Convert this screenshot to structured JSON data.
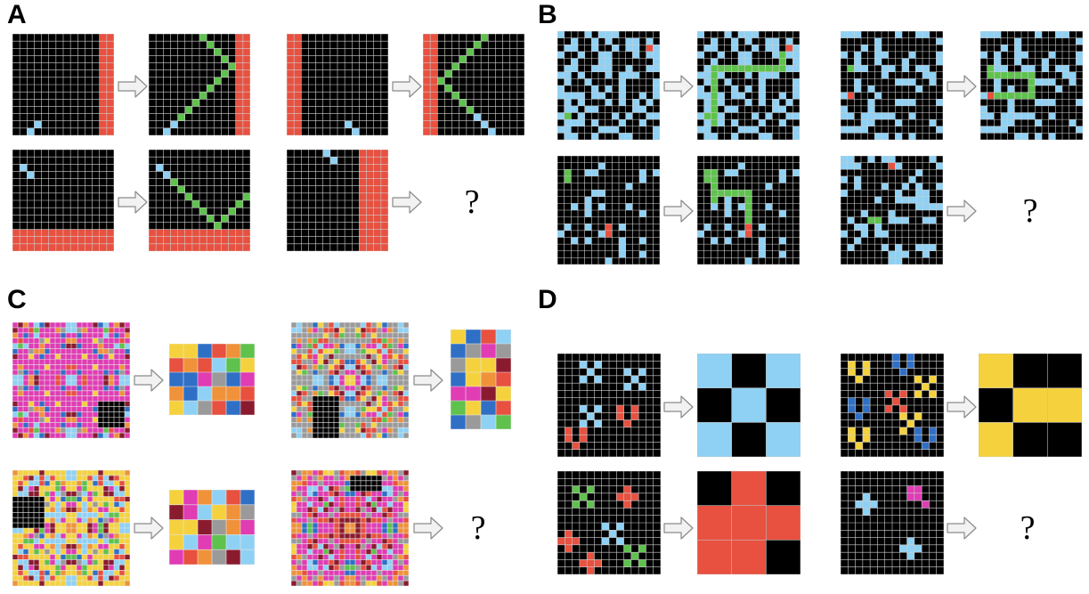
{
  "panels": [
    {
      "id": "A",
      "label": "A"
    },
    {
      "id": "B",
      "label": "B"
    },
    {
      "id": "C",
      "label": "C"
    },
    {
      "id": "D",
      "label": "D"
    }
  ],
  "question_mark": "?",
  "colors": {
    "background": "#000000",
    "gridline": "#d0d0d0",
    "red": "#e8503f",
    "light_blue": "#8fd1f4",
    "green": "#5ec24d",
    "yellow": "#f5d23d",
    "blue": "#2f6fc6",
    "magenta": "#e03cb4",
    "gray": "#9a9a9a",
    "orange": "#f0923a",
    "maroon": "#8a1b2e",
    "arrow_fill": "#f2f2f2",
    "arrow_stroke": "#8a8a8a"
  }
}
